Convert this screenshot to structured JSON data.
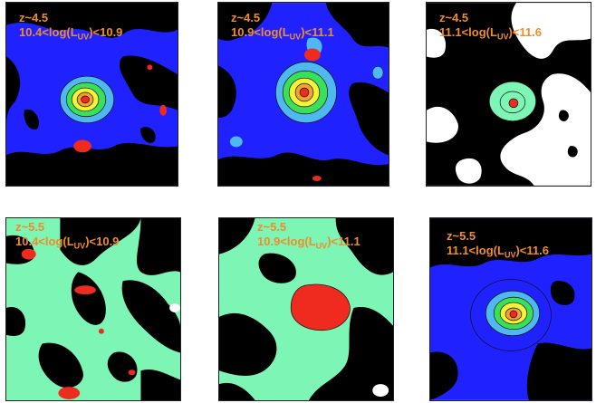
{
  "colors": {
    "black": "#000000",
    "blue": "#1f22ff",
    "lightblue": "#4fb8f0",
    "aqua": "#7df5b4",
    "green": "#39e05a",
    "yellow": "#f3f236",
    "orange": "#f0a52a",
    "red": "#ef2a1f",
    "white": "#ffffff",
    "label": "#f08c2a"
  },
  "panels": [
    {
      "id": "p1",
      "z": "z~4.5",
      "lum_lo": "10.4<log(L",
      "lum_sub": "UV",
      "lum_hi": ")<10.9"
    },
    {
      "id": "p2",
      "z": "z~4.5",
      "lum_lo": "10.9<log(L",
      "lum_sub": "UV",
      "lum_hi": ")<11.1"
    },
    {
      "id": "p3",
      "z": "z~4.5",
      "lum_lo": "11.1<log(L",
      "lum_sub": "UV",
      "lum_hi": ")<11.6"
    },
    {
      "id": "p4",
      "z": "z~5.5",
      "lum_lo": "10.4<log(L",
      "lum_sub": "UV",
      "lum_hi": ")<10.9"
    },
    {
      "id": "p5",
      "z": "z~5.5",
      "lum_lo": "10.9<log(L",
      "lum_sub": "UV",
      "lum_hi": ")<11.1"
    },
    {
      "id": "p6",
      "z": "z~5.5",
      "lum_lo": "11.1<log(L",
      "lum_sub": "UV",
      "lum_hi": ")<11.6"
    }
  ]
}
